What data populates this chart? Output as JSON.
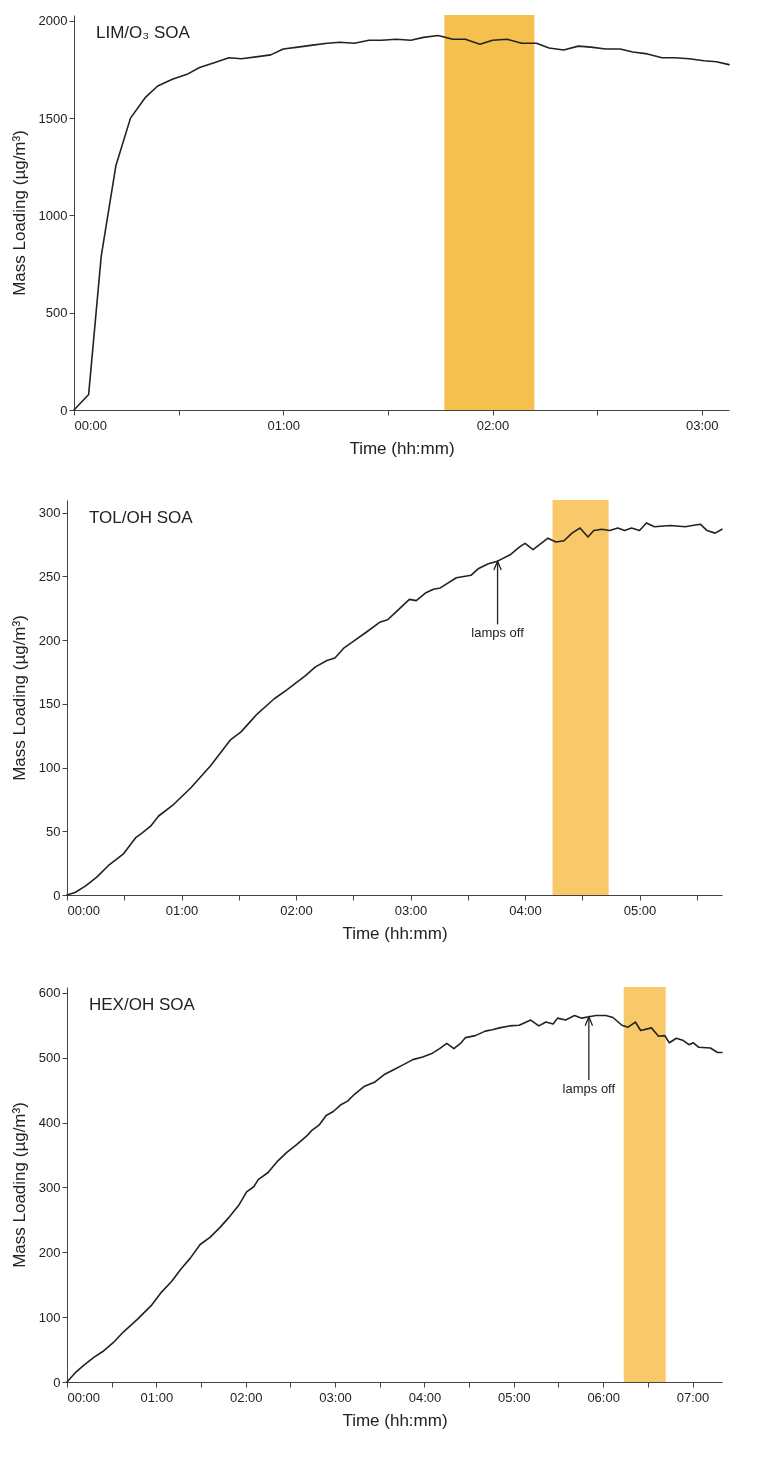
{
  "chart_data": [
    {
      "type": "line",
      "title": "LIM/O₃ SOA",
      "xlabel": "Time (hh:mm)",
      "ylabel": "Mass Loading (µg/m³)",
      "grid": false,
      "line_style": "solid",
      "marker": "none",
      "xlim": [
        0,
        3.13
      ],
      "xticks": [
        {
          "value": 0,
          "label": "00:00"
        },
        {
          "value": 0.5,
          "label": null
        },
        {
          "value": 1,
          "label": "01:00"
        },
        {
          "value": 1.5,
          "label": null
        },
        {
          "value": 2,
          "label": "02:00"
        },
        {
          "value": 2.5,
          "label": null
        },
        {
          "value": 3,
          "label": "03:00"
        }
      ],
      "ylim": [
        0,
        2030
      ],
      "yticks": [
        0,
        500,
        1000,
        1500,
        2000
      ],
      "bands": [
        {
          "axis": "x",
          "from": 1.77,
          "to": 2.2,
          "color": "#f5c04e"
        }
      ],
      "series": [
        {
          "color": "#222222",
          "x": [
            0,
            0.07,
            0.13,
            0.2,
            0.27,
            0.34,
            0.4,
            0.47,
            0.54,
            0.6,
            0.67,
            0.74,
            0.8,
            0.87,
            0.94,
            1.0,
            1.07,
            1.14,
            1.21,
            1.27,
            1.34,
            1.41,
            1.47,
            1.54,
            1.61,
            1.67,
            1.74,
            1.81,
            1.87,
            1.94,
            2.0,
            2.07,
            2.14,
            2.21,
            2.27,
            2.34,
            2.41,
            2.47,
            2.54,
            2.61,
            2.67,
            2.74,
            2.81,
            2.87,
            2.94,
            3.01,
            3.07,
            3.13
          ],
          "values": [
            0,
            80,
            790,
            1255,
            1500,
            1605,
            1665,
            1700,
            1725,
            1760,
            1785,
            1810,
            1805,
            1815,
            1825,
            1855,
            1865,
            1875,
            1885,
            1890,
            1885,
            1900,
            1900,
            1905,
            1900,
            1915,
            1925,
            1905,
            1905,
            1880,
            1900,
            1905,
            1885,
            1885,
            1860,
            1850,
            1870,
            1865,
            1855,
            1855,
            1840,
            1830,
            1810,
            1810,
            1805,
            1795,
            1790,
            1775
          ]
        }
      ]
    },
    {
      "type": "line",
      "title": "TOL/OH SOA",
      "xlabel": "Time (hh:mm)",
      "ylabel": "Mass Loading (µg/m³)",
      "grid": false,
      "line_style": "solid",
      "marker": "none",
      "xlim": [
        0,
        5.72
      ],
      "xticks": [
        {
          "value": 0,
          "label": "00:00"
        },
        {
          "value": 0.5,
          "label": null
        },
        {
          "value": 1,
          "label": "01:00"
        },
        {
          "value": 1.5,
          "label": null
        },
        {
          "value": 2,
          "label": "02:00"
        },
        {
          "value": 2.5,
          "label": null
        },
        {
          "value": 3,
          "label": "03:00"
        },
        {
          "value": 3.5,
          "label": null
        },
        {
          "value": 4,
          "label": "04:00"
        },
        {
          "value": 4.5,
          "label": null
        },
        {
          "value": 5,
          "label": "05:00"
        },
        {
          "value": 5.5,
          "label": null
        }
      ],
      "ylim": [
        0,
        310
      ],
      "yticks": [
        0,
        50,
        100,
        150,
        200,
        250,
        300
      ],
      "bands": [
        {
          "axis": "x",
          "from": 4.24,
          "to": 4.73,
          "color": "#f9c86a"
        }
      ],
      "annotations": [
        {
          "text": "lamps off",
          "x": 3.76,
          "y": 262
        }
      ],
      "series": [
        {
          "color": "#222222",
          "x": [
            0,
            0.07,
            0.16,
            0.26,
            0.36,
            0.49,
            0.6,
            0.66,
            0.73,
            0.8,
            0.93,
            1.08,
            1.25,
            1.43,
            1.52,
            1.66,
            1.81,
            1.92,
            2.08,
            2.17,
            2.27,
            2.34,
            2.42,
            2.5,
            2.61,
            2.73,
            2.8,
            2.86,
            2.99,
            3.05,
            3.13,
            3.2,
            3.26,
            3.4,
            3.53,
            3.59,
            3.68,
            3.76,
            3.87,
            3.95,
            4.0,
            4.07,
            4.2,
            4.27,
            4.34,
            4.41,
            4.48,
            4.55,
            4.6,
            4.67,
            4.74,
            4.81,
            4.87,
            4.93,
            5.0,
            5.06,
            5.13,
            5.27,
            5.4,
            5.46,
            5.53,
            5.59,
            5.66,
            5.72
          ],
          "values": [
            0,
            2,
            7,
            14,
            23,
            32,
            45,
            49,
            54,
            62,
            71,
            84,
            101,
            122,
            128,
            142,
            154,
            161,
            172,
            179,
            184,
            186,
            194,
            199,
            206,
            214,
            216,
            221,
            232,
            231,
            237,
            240,
            241,
            249,
            251,
            256,
            260,
            262,
            267,
            273,
            276,
            271,
            280,
            277,
            278,
            284,
            288,
            281,
            286,
            287,
            286,
            288,
            286,
            288,
            286,
            292,
            289,
            290,
            289,
            290,
            291,
            286,
            284,
            287
          ]
        }
      ]
    },
    {
      "type": "line",
      "title": "HEX/OH SOA",
      "xlabel": "Time (hh:mm)",
      "ylabel": "Mass Loading (µg/m³)",
      "grid": false,
      "line_style": "solid",
      "marker": "none",
      "xlim": [
        0,
        7.33
      ],
      "xticks": [
        {
          "value": 0,
          "label": "00:00"
        },
        {
          "value": 0.5,
          "label": null
        },
        {
          "value": 1,
          "label": "01:00"
        },
        {
          "value": 1.5,
          "label": null
        },
        {
          "value": 2,
          "label": "02:00"
        },
        {
          "value": 2.5,
          "label": null
        },
        {
          "value": 3,
          "label": "03:00"
        },
        {
          "value": 3.5,
          "label": null
        },
        {
          "value": 4,
          "label": "04:00"
        },
        {
          "value": 4.5,
          "label": null
        },
        {
          "value": 5,
          "label": "05:00"
        },
        {
          "value": 5.5,
          "label": null
        },
        {
          "value": 6,
          "label": "06:00"
        },
        {
          "value": 6.5,
          "label": null
        },
        {
          "value": 7,
          "label": "07:00"
        }
      ],
      "ylim": [
        0,
        609
      ],
      "yticks": [
        0,
        100,
        200,
        300,
        400,
        500,
        600
      ],
      "bands": [
        {
          "axis": "x",
          "from": 6.23,
          "to": 6.7,
          "color": "#f9c86a"
        }
      ],
      "annotations": [
        {
          "text": "lamps off",
          "x": 5.84,
          "y": 563
        }
      ],
      "series": [
        {
          "color": "#222222",
          "x": [
            0,
            0.09,
            0.19,
            0.3,
            0.4,
            0.52,
            0.63,
            0.79,
            0.95,
            1.06,
            1.17,
            1.28,
            1.38,
            1.49,
            1.6,
            1.71,
            1.82,
            1.92,
            2.01,
            2.09,
            2.14,
            2.25,
            2.36,
            2.46,
            2.57,
            2.68,
            2.74,
            2.82,
            2.9,
            2.98,
            3.06,
            3.14,
            3.22,
            3.33,
            3.44,
            3.55,
            3.65,
            3.76,
            3.87,
            3.98,
            4.09,
            4.17,
            4.25,
            4.33,
            4.41,
            4.46,
            4.57,
            4.68,
            4.76,
            4.84,
            4.95,
            5.06,
            5.19,
            5.28,
            5.36,
            5.44,
            5.49,
            5.58,
            5.68,
            5.76,
            5.84,
            5.92,
            6.03,
            6.11,
            6.21,
            6.28,
            6.36,
            6.42,
            6.54,
            6.62,
            6.69,
            6.74,
            6.82,
            6.89,
            6.96,
            7.01,
            7.07,
            7.2,
            7.28,
            7.33
          ],
          "values": [
            0,
            14,
            26,
            38,
            47,
            61,
            77,
            97,
            119,
            139,
            155,
            175,
            191,
            212,
            223,
            238,
            255,
            272,
            293,
            301,
            312,
            323,
            341,
            354,
            366,
            379,
            388,
            396,
            411,
            417,
            427,
            433,
            444,
            456,
            462,
            474,
            481,
            489,
            497,
            501,
            507,
            514,
            522,
            514,
            523,
            531,
            534,
            541,
            543,
            546,
            549,
            550,
            558,
            549,
            555,
            552,
            561,
            558,
            565,
            561,
            563,
            565,
            565,
            562,
            550,
            547,
            555,
            542,
            546,
            533,
            534,
            523,
            530,
            527,
            520,
            523,
            516,
            515,
            508,
            508
          ]
        }
      ]
    }
  ]
}
